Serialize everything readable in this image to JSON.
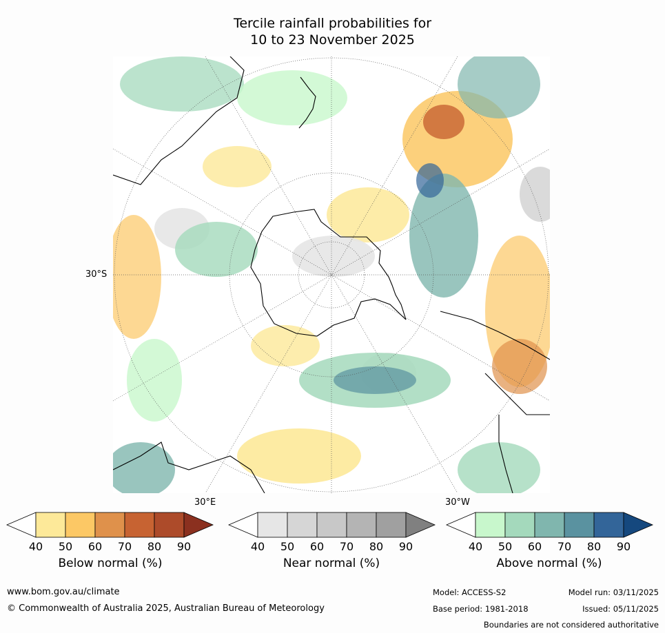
{
  "title": {
    "line1": "Tercile rainfall probabilities for",
    "line2": "10 to 23 November 2025"
  },
  "map": {
    "lat_label": "30°S",
    "lon_labels": {
      "east": "30°E",
      "west": "30°W"
    }
  },
  "colorbars": [
    {
      "label": "Below normal (%)",
      "ticks": [
        "40",
        "50",
        "60",
        "70",
        "80",
        "90"
      ],
      "colors": [
        "#ffffff",
        "#fde999",
        "#fcc865",
        "#df914b",
        "#c76332",
        "#ad4b2a",
        "#8b301f"
      ]
    },
    {
      "label": "Near normal (%)",
      "ticks": [
        "40",
        "50",
        "60",
        "70",
        "80",
        "90"
      ],
      "colors": [
        "#ffffff",
        "#e6e6e6",
        "#d6d6d6",
        "#c8c8c8",
        "#b4b4b4",
        "#a0a0a0",
        "#808080"
      ]
    },
    {
      "label": "Above normal (%)",
      "ticks": [
        "40",
        "50",
        "60",
        "70",
        "80",
        "90"
      ],
      "colors": [
        "#ffffff",
        "#c8f7cc",
        "#a4d9bc",
        "#80b6ae",
        "#5a92a0",
        "#336599",
        "#15487e"
      ]
    }
  ],
  "footer": {
    "website": "www.bom.gov.au/climate",
    "copyright": "© Commonwealth of Australia 2025, Australian Bureau of Meteorology",
    "model": "Model: ACCESS-S2",
    "base_period": "Base period: 1981-2018",
    "model_run": "Model run: 03/11/2025",
    "issued": "Issued: 05/11/2025",
    "disclaimer": "Boundaries are not considered authoritative"
  }
}
